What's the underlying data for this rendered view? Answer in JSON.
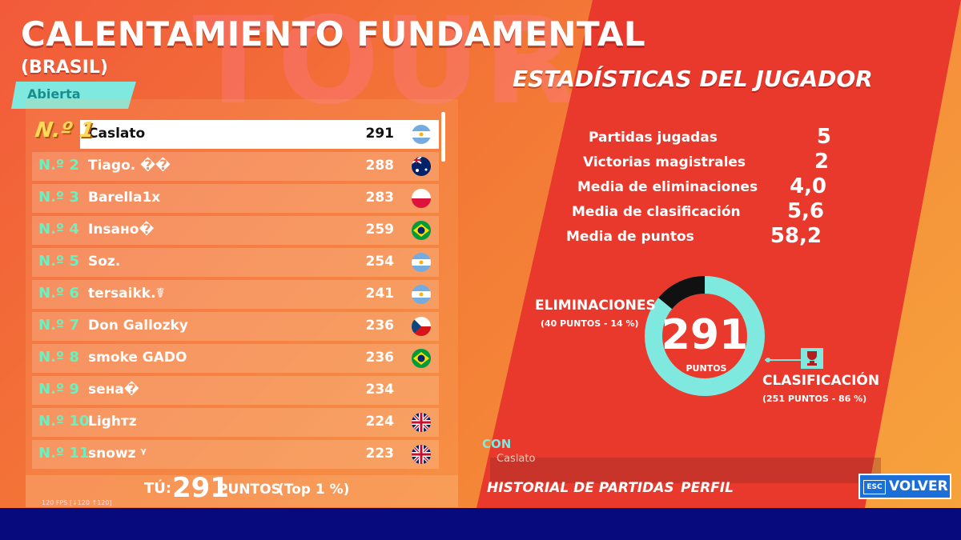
{
  "header": {
    "title": "CALENTAMIENTO FUNDAMENTAL",
    "subtitle": "(BRASIL)",
    "badge": "Abierta"
  },
  "leaderboard": [
    {
      "rank": "N.º 1",
      "name": "Caslato",
      "points": "291",
      "flag": "argentina"
    },
    {
      "rank": "N.º 2",
      "name": "Tiago. ��",
      "points": "288",
      "flag": "australia"
    },
    {
      "rank": "N.º 3",
      "name": "Barella1x",
      "points": "283",
      "flag": "poland"
    },
    {
      "rank": "N.º 4",
      "name": "Insано�",
      "points": "259",
      "flag": "brazil"
    },
    {
      "rank": "N.º 5",
      "name": "Soz.",
      "points": "254",
      "flag": "argentina"
    },
    {
      "rank": "N.º 6",
      "name": "tersaikk.☤",
      "points": "241",
      "flag": "argentina"
    },
    {
      "rank": "N.º 7",
      "name": "Don Gallozky",
      "points": "236",
      "flag": "czech"
    },
    {
      "rank": "N.º 8",
      "name": "smoke GADO",
      "points": "236",
      "flag": "brazil"
    },
    {
      "rank": "N.º 9",
      "name": "seнa�",
      "points": "234",
      "flag": ""
    },
    {
      "rank": "N.º 10",
      "name": "Lighтz",
      "points": "224",
      "flag": "uk"
    },
    {
      "rank": "N.º 11",
      "name": "snowz ᵞ",
      "points": "223",
      "flag": "uk"
    }
  ],
  "you": {
    "label": "TÚ:",
    "points": "291",
    "points_label": "PUNTOS",
    "top": "(Top 1 %)"
  },
  "fps": "120 FPS [↓120 ↑120]",
  "stats": {
    "title": "ESTADÍSTICAS DEL JUGADOR",
    "items": [
      {
        "label": "Partidas jugadas",
        "value": "5"
      },
      {
        "label": "Victorias magistrales",
        "value": "2"
      },
      {
        "label": "Media de eliminaciones",
        "value": "4,0"
      },
      {
        "label": "Media de clasificación",
        "value": "5,6"
      },
      {
        "label": "Media de puntos",
        "value": "58,2"
      }
    ]
  },
  "donut": {
    "total": "291",
    "total_label": "PUNTOS",
    "elim_title": "ELIMINACIONES",
    "elim_sub": "(40 PUNTOS - 14 %)",
    "elim_fraction": 0.14,
    "clas_title": "CLASIFICACIÓN",
    "clas_sub": "(251 PUNTOS - 86 %)",
    "color_clas": "#7fe9df",
    "color_elim": "#111111"
  },
  "footer": {
    "con": "CON",
    "con_name": "Caslato",
    "history": "HISTORIAL DE PARTIDAS",
    "profile": "PERFIL",
    "esc": "ESC",
    "back": "VOLVER"
  }
}
